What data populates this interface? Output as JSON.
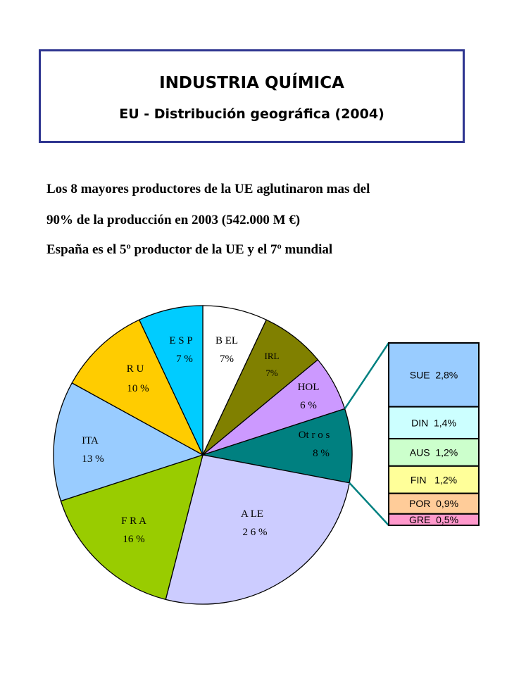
{
  "header": {
    "title": "INDUSTRIA QUÍMICA",
    "subtitle": "EU - Distribución geográfica (2004)"
  },
  "intro": {
    "line1": "Los 8 mayores productores de la UE aglutinaron mas del",
    "line2": "90% de la producción en 2003 (542.000 M €)",
    "line3": "España es el 5º productor de la UE y el 7º mundial"
  },
  "chart_data": {
    "type": "pie",
    "slices": [
      {
        "key": "BEL",
        "label": "B EL",
        "value_label": "7%",
        "value": 7,
        "color": "#ffffff"
      },
      {
        "key": "IRL",
        "label": "IRL",
        "value_label": "7%",
        "value": 7,
        "color": "#808000"
      },
      {
        "key": "HOL",
        "label": "HOL",
        "value_label": "6 %",
        "value": 6,
        "color": "#cc99ff"
      },
      {
        "key": "Otros",
        "label": "Ot r o s",
        "value_label": "8 %",
        "value": 8,
        "color": "#008080"
      },
      {
        "key": "ALE",
        "label": "A LE",
        "value_label": "2 6 %",
        "value": 26,
        "color": "#ccccff"
      },
      {
        "key": "FRA",
        "label": "F R A",
        "value_label": "16 %",
        "value": 16,
        "color": "#99cc00"
      },
      {
        "key": "ITA",
        "label": "ITA",
        "value_label": "13 %",
        "value": 13,
        "color": "#99ccff"
      },
      {
        "key": "RU",
        "label": "R U",
        "value_label": "10 %",
        "value": 10,
        "color": "#ffcc00"
      },
      {
        "key": "ESP",
        "label": "E S P",
        "value_label": "7 %",
        "value": 7,
        "color": "#00ccff"
      }
    ],
    "breakdown_of": "Otros",
    "breakdown": [
      {
        "label": "SUE  2,8%",
        "value": 2.8,
        "color": "#99ccff"
      },
      {
        "label": "DIN  1,4%",
        "value": 1.4,
        "color": "#ccffff"
      },
      {
        "label": "AUS  1,2%",
        "value": 1.2,
        "color": "#ccffcc"
      },
      {
        "label": "FIN   1,2%",
        "value": 1.2,
        "color": "#ffff99"
      },
      {
        "label": "POR  0,9%",
        "value": 0.9,
        "color": "#ffcc99"
      },
      {
        "label": "GRE  0,5%",
        "value": 0.5,
        "color": "#ff99cc"
      }
    ],
    "connector_color": "#008080"
  }
}
